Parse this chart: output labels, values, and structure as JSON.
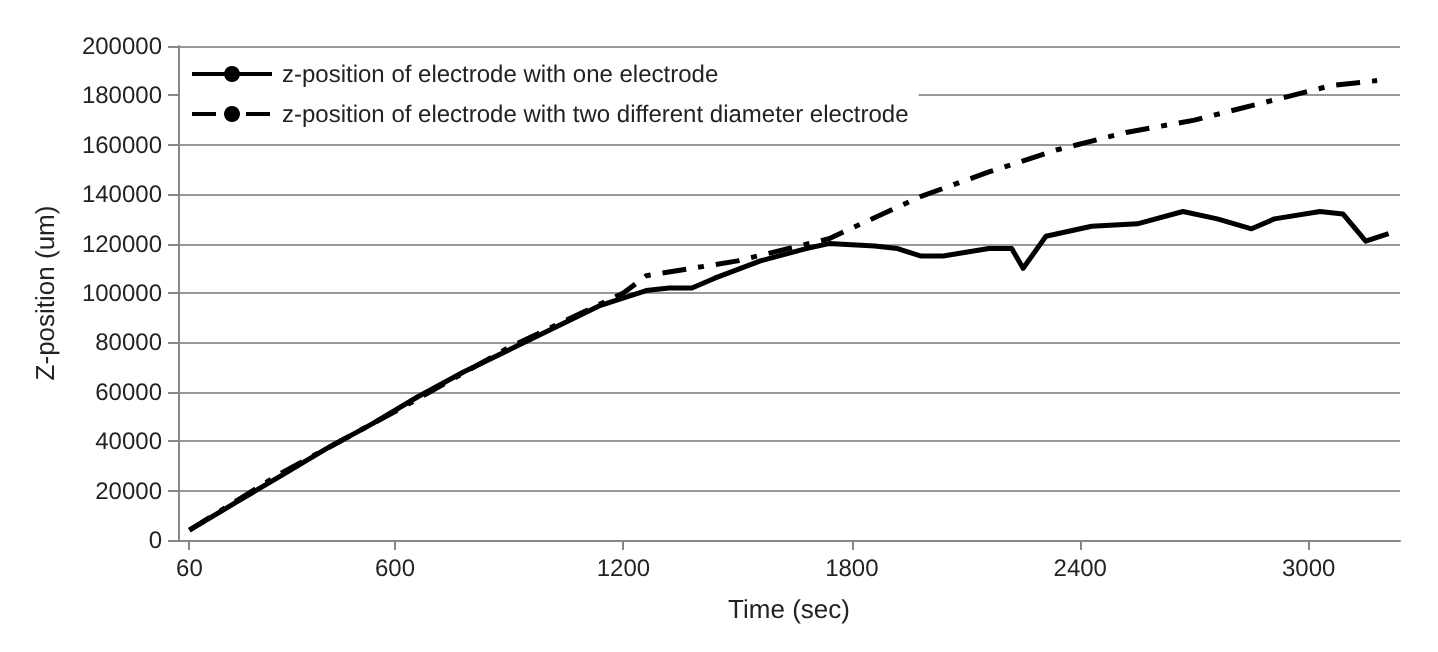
{
  "chart_data": {
    "type": "line",
    "xlabel": "Time (sec)",
    "ylabel": "Z-position (um)",
    "xlim": [
      30,
      3240
    ],
    "xticks": [
      60,
      600,
      1200,
      1800,
      2400,
      3000
    ],
    "ylim": [
      0,
      200000
    ],
    "yticks": [
      0,
      20000,
      40000,
      60000,
      80000,
      100000,
      120000,
      140000,
      160000,
      180000,
      200000
    ],
    "grid": "y",
    "legend": "top left",
    "marker": "none",
    "series": [
      {
        "name": "z-position of electrode with one electrode",
        "color": "#000000",
        "line_style": "solid",
        "x": [
          60,
          180,
          300,
          420,
          540,
          660,
          780,
          900,
          1020,
          1140,
          1260,
          1320,
          1380,
          1440,
          1560,
          1680,
          1740,
          1860,
          1920,
          1980,
          2040,
          2160,
          2220,
          2250,
          2310,
          2430,
          2550,
          2670,
          2760,
          2850,
          2910,
          3030,
          3090,
          3150,
          3210
        ],
        "values": [
          4000,
          15000,
          26000,
          37000,
          47000,
          58000,
          68000,
          77000,
          86000,
          95000,
          101000,
          102000,
          102000,
          106000,
          113000,
          118000,
          120000,
          119000,
          118000,
          115000,
          115000,
          118000,
          118000,
          110000,
          123000,
          127000,
          128000,
          133000,
          130000,
          126000,
          130000,
          133000,
          132000,
          121000,
          124000
        ]
      },
      {
        "name": "z-position of electrode with two different diameter electrode",
        "color": "#000000",
        "line_style": "dashed",
        "x": [
          60,
          300,
          600,
          900,
          1200,
          1260,
          1500,
          1740,
          1980,
          2160,
          2340,
          2520,
          2700,
          2880,
          3060,
          3180
        ],
        "values": [
          4000,
          27000,
          52000,
          78000,
          100000,
          107000,
          113000,
          122000,
          139000,
          149000,
          158000,
          165000,
          170000,
          177000,
          184000,
          186000
        ]
      }
    ]
  }
}
